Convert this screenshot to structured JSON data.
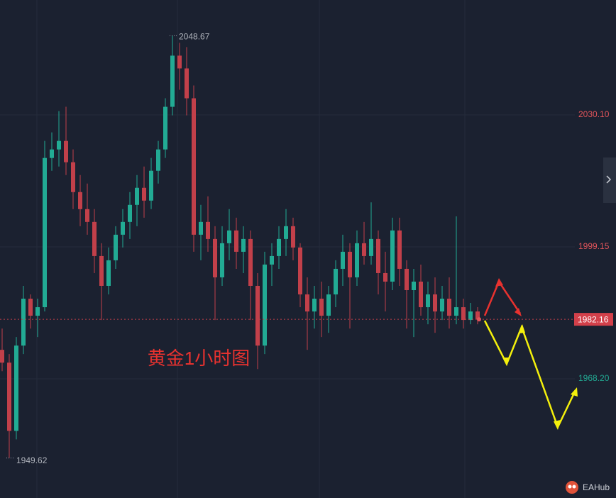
{
  "chart_data": {
    "type": "candlestick",
    "title": "黄金1小时图",
    "brand": "EAHub",
    "ylim": [
      1940.25,
      2057.05
    ],
    "yticks": [
      {
        "value": 1968.2,
        "label": "1968.20"
      },
      {
        "value": 1999.15,
        "label": "1999.15"
      },
      {
        "value": 2030.1,
        "label": "2030.10"
      }
    ],
    "last_price": 1982.16,
    "high": 2048.67,
    "low": 1949.62,
    "up_color": "#22ab94",
    "down_color": "#c2404a",
    "grid": true,
    "candles": [
      [
        1975,
        1980,
        1970,
        1972
      ],
      [
        1972,
        1974,
        1949.62,
        1956
      ],
      [
        1956,
        1978,
        1954,
        1976
      ],
      [
        1976,
        1990,
        1974,
        1987
      ],
      [
        1987,
        1988,
        1980,
        1983
      ],
      [
        1983,
        1987,
        1978,
        1985
      ],
      [
        1985,
        2024,
        1984,
        2020
      ],
      [
        2020,
        2026,
        2017,
        2022
      ],
      [
        2022,
        2031,
        2018,
        2024
      ],
      [
        2024,
        2032,
        2016,
        2019
      ],
      [
        2019,
        2022,
        2008,
        2012
      ],
      [
        2012,
        2016,
        2004,
        2008
      ],
      [
        2008,
        2014,
        2002,
        2005
      ],
      [
        2005,
        2008,
        1993,
        1997
      ],
      [
        1997,
        2000,
        1982,
        1990
      ],
      [
        1990,
        1999,
        1988,
        1996
      ],
      [
        1996,
        2004,
        1994,
        2002
      ],
      [
        2002,
        2008,
        1999,
        2005
      ],
      [
        2005,
        2012,
        2001,
        2009
      ],
      [
        2009,
        2016,
        2004,
        2013
      ],
      [
        2013,
        2018,
        2006,
        2010
      ],
      [
        2010,
        2020,
        2008,
        2017
      ],
      [
        2017,
        2024,
        2014,
        2022
      ],
      [
        2022,
        2034,
        2020,
        2032
      ],
      [
        2032,
        2048.67,
        2030,
        2044
      ],
      [
        2044,
        2047,
        2036,
        2041
      ],
      [
        2041,
        2046,
        2030,
        2034
      ],
      [
        2034,
        2037,
        1998,
        2002
      ],
      [
        2002,
        2009,
        1996,
        2005
      ],
      [
        2005,
        2011,
        1998,
        2001
      ],
      [
        2001,
        2004,
        1982,
        1992
      ],
      [
        1992,
        2004,
        1990,
        2000
      ],
      [
        2000,
        2008,
        1996,
        2003
      ],
      [
        2003,
        2006,
        1994,
        1998
      ],
      [
        1998,
        2004,
        1993,
        2001
      ],
      [
        2001,
        2003,
        1982,
        1990
      ],
      [
        1990,
        1993,
        1970.5,
        1976
      ],
      [
        1976,
        1998,
        1974,
        1995
      ],
      [
        1995,
        2000,
        1990,
        1997
      ],
      [
        1997,
        2004,
        1994,
        2001
      ],
      [
        2001,
        2008,
        1997,
        2004
      ],
      [
        2004,
        2006,
        1996,
        1999
      ],
      [
        1999,
        2000,
        1985,
        1988
      ],
      [
        1988,
        1992,
        1975,
        1984
      ],
      [
        1984,
        1990,
        1980,
        1987
      ],
      [
        1987,
        1991,
        1978,
        1983
      ],
      [
        1983,
        1990,
        1979,
        1988
      ],
      [
        1988,
        1996,
        1985,
        1994
      ],
      [
        1994,
        2002,
        1990,
        1998
      ],
      [
        1998,
        2000,
        1980,
        1992
      ],
      [
        1992,
        2003,
        1990,
        2000
      ],
      [
        2000,
        2005,
        1995,
        1997
      ],
      [
        1997,
        2009.6,
        1995,
        2001
      ],
      [
        2001,
        2003,
        1988,
        1993
      ],
      [
        1993,
        1998,
        1984,
        1991
      ],
      [
        1991,
        2006,
        1989,
        2003
      ],
      [
        2003,
        2006,
        1990,
        1994
      ],
      [
        1994,
        1996,
        1980,
        1989
      ],
      [
        1989,
        1994,
        1978,
        1991
      ],
      [
        1991,
        1995,
        1983,
        1985
      ],
      [
        1985,
        1991,
        1981,
        1988
      ],
      [
        1988,
        1992,
        1979,
        1984
      ],
      [
        1984,
        1990,
        1982,
        1987
      ],
      [
        1987,
        1992,
        1980,
        1983
      ],
      [
        1983,
        2006.3,
        1981,
        1985
      ],
      [
        1985,
        1987,
        1980,
        1982
      ],
      [
        1982,
        1986,
        1981,
        1984
      ],
      [
        1984,
        1985,
        1981,
        1982.16
      ]
    ]
  }
}
